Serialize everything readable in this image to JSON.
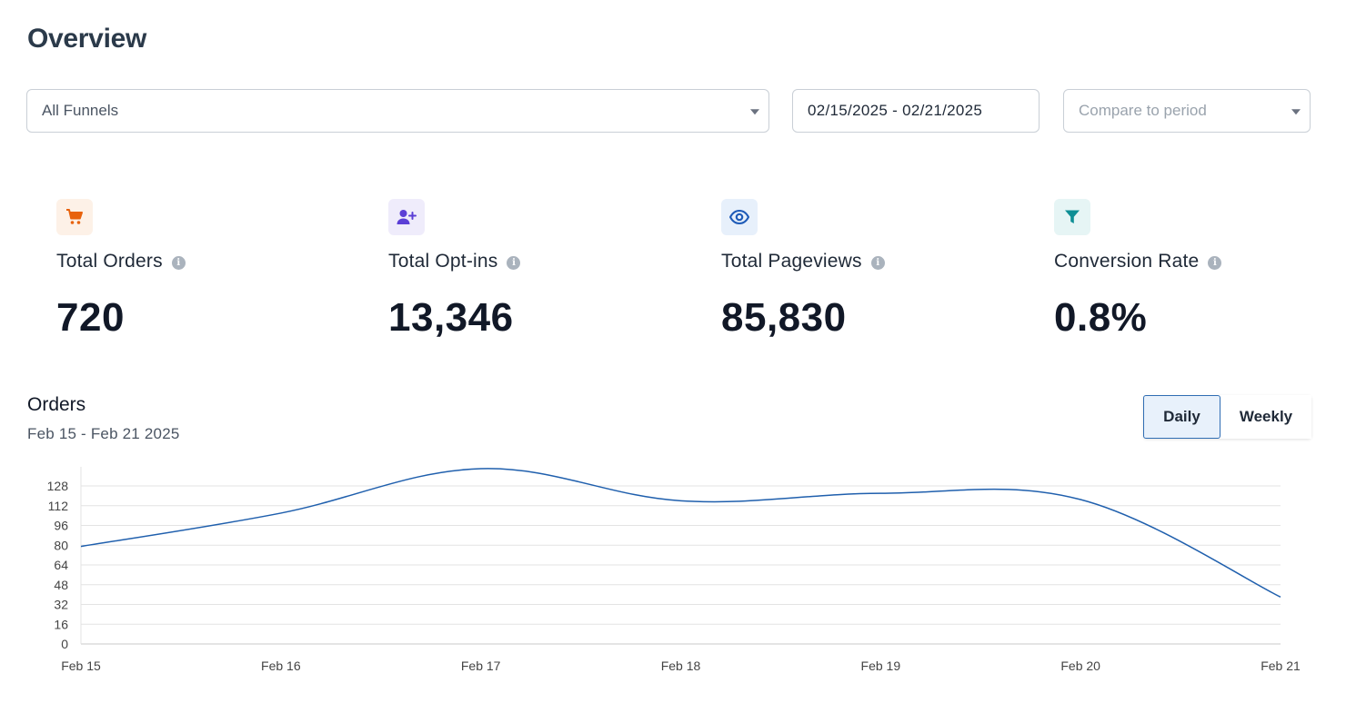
{
  "page": {
    "title": "Overview"
  },
  "filters": {
    "funnel": "All Funnels",
    "date_range": "02/15/2025 - 02/21/2025",
    "compare_placeholder": "Compare to period"
  },
  "stats": [
    {
      "label": "Total Orders",
      "value": "720",
      "icon": "cart-icon",
      "icon_color": "#e8620c",
      "icon_bg": "#fdf1e7"
    },
    {
      "label": "Total Opt-ins",
      "value": "13,346",
      "icon": "user-plus-icon",
      "icon_color": "#5b3fd6",
      "icon_bg": "#efecfb"
    },
    {
      "label": "Total Pageviews",
      "value": "85,830",
      "icon": "eye-icon",
      "icon_color": "#1e5bb8",
      "icon_bg": "#e7f0fb"
    },
    {
      "label": "Conversion Rate",
      "value": "0.8%",
      "icon": "funnel-icon",
      "icon_color": "#0e8f95",
      "icon_bg": "#e6f5f5"
    }
  ],
  "orders_chart": {
    "title": "Orders",
    "subtitle": "Feb 15 - Feb 21 2025",
    "toggle": {
      "daily": "Daily",
      "weekly": "Weekly",
      "selected": "Daily"
    }
  },
  "chart_data": {
    "type": "line",
    "categories": [
      "Feb 15",
      "Feb 16",
      "Feb 17",
      "Feb 18",
      "Feb 19",
      "Feb 20",
      "Feb 21"
    ],
    "series": [
      {
        "values": [
          79,
          106,
          142,
          116,
          122,
          117,
          38
        ],
        "color": "#1f5fad"
      }
    ],
    "yticks": [
      0,
      16,
      32,
      48,
      64,
      80,
      96,
      112,
      128
    ],
    "ylim": [
      0,
      142
    ],
    "grid": true,
    "legend": "none"
  }
}
